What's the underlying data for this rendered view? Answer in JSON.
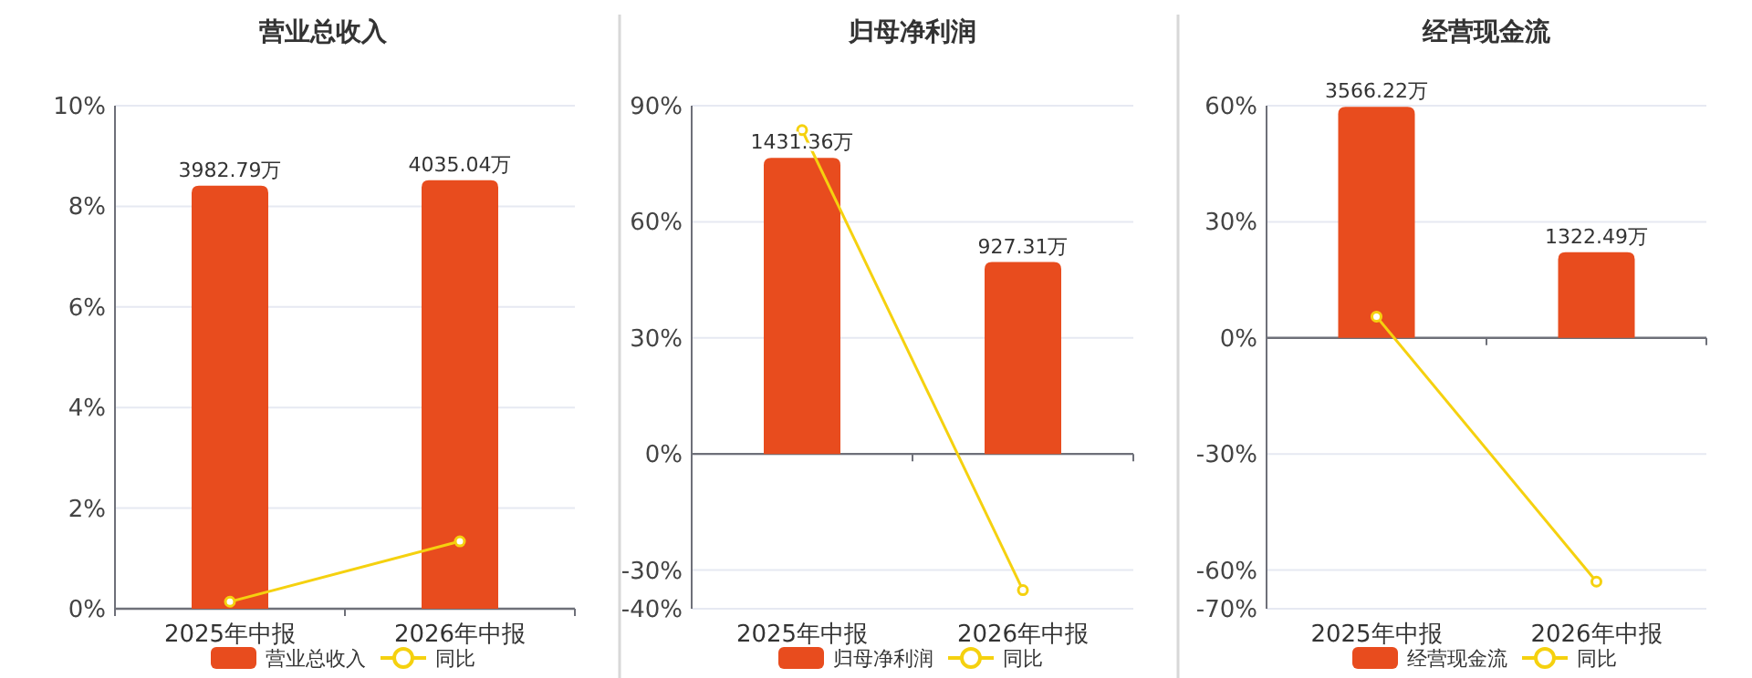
{
  "chart_data": [
    {
      "type": "bar",
      "title": "营业总收入",
      "categories": [
        "2025年中报",
        "2026年中报"
      ],
      "ylim": [
        0,
        10
      ],
      "yticks": [
        {
          "value": 0,
          "label": "0%"
        },
        {
          "value": 2,
          "label": "2%"
        },
        {
          "value": 4,
          "label": "4%"
        },
        {
          "value": 6,
          "label": "6%"
        },
        {
          "value": 8,
          "label": "8%"
        },
        {
          "value": 10,
          "label": "10%"
        }
      ],
      "y2lim": [
        0,
        4736
      ],
      "grid": "y",
      "legend": "bottom",
      "marker": "circle",
      "series": [
        {
          "name": "营业总收入",
          "axis": "y2",
          "color": "#e84c1e",
          "values": [
            3982.79,
            4035.04
          ],
          "value_labels": [
            "3982.79万",
            "4035.04万"
          ]
        },
        {
          "name": "同比",
          "type": "line",
          "color": "#f5d10f",
          "values": [
            0.14,
            1.34
          ]
        }
      ]
    },
    {
      "type": "bar",
      "title": "归母净利润",
      "categories": [
        "2025年中报",
        "2026年中报"
      ],
      "ylim": [
        -40,
        90
      ],
      "yticks": [
        {
          "value": -40,
          "label": "-40%"
        },
        {
          "value": -30,
          "label": "-30%"
        },
        {
          "value": 0,
          "label": "0%"
        },
        {
          "value": 30,
          "label": "30%"
        },
        {
          "value": 60,
          "label": "60%"
        },
        {
          "value": 90,
          "label": "90%"
        }
      ],
      "y2lim": [
        -748,
        1683
      ],
      "grid": "y",
      "legend": "bottom",
      "marker": "circle",
      "series": [
        {
          "name": "归母净利润",
          "axis": "y2",
          "color": "#e84c1e",
          "values": [
            1431.36,
            927.31
          ],
          "value_labels": [
            "1431.36万",
            "927.31万"
          ]
        },
        {
          "name": "同比",
          "type": "line",
          "color": "#f5d10f",
          "values": [
            83.7,
            -35.2
          ]
        }
      ]
    },
    {
      "type": "bar",
      "title": "经营现金流",
      "categories": [
        "2025年中报",
        "2026年中报"
      ],
      "ylim": [
        -70,
        60
      ],
      "yticks": [
        {
          "value": -70,
          "label": "-70%"
        },
        {
          "value": -60,
          "label": "-60%"
        },
        {
          "value": -30,
          "label": "-30%"
        },
        {
          "value": 0,
          "label": "0%"
        },
        {
          "value": 30,
          "label": "30%"
        },
        {
          "value": 60,
          "label": "60%"
        }
      ],
      "y2lim": [
        -4183,
        3585
      ],
      "grid": "y",
      "legend": "bottom",
      "marker": "circle",
      "series": [
        {
          "name": "经营现金流",
          "axis": "y2",
          "color": "#e84c1e",
          "values": [
            3566.22,
            1322.49
          ],
          "value_labels": [
            "3566.22万",
            "1322.49万"
          ]
        },
        {
          "name": "同比",
          "type": "line",
          "color": "#f5d10f",
          "values": [
            5.5,
            -63
          ]
        }
      ]
    }
  ]
}
